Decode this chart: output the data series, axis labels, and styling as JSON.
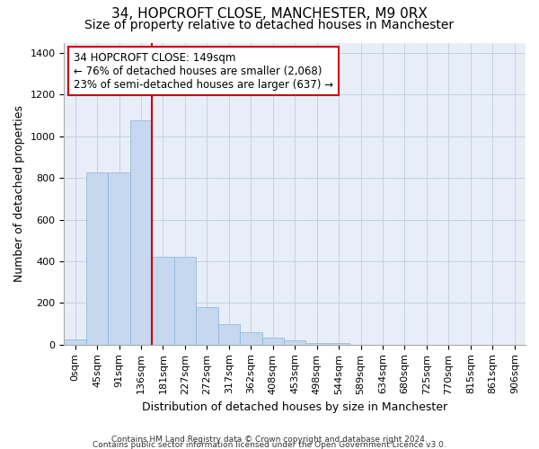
{
  "title1": "34, HOPCROFT CLOSE, MANCHESTER, M9 0RX",
  "title2": "Size of property relative to detached houses in Manchester",
  "xlabel": "Distribution of detached houses by size in Manchester",
  "ylabel": "Number of detached properties",
  "footer1": "Contains HM Land Registry data © Crown copyright and database right 2024.",
  "footer2": "Contains public sector information licensed under the Open Government Licence v3.0.",
  "annotation_line1": "34 HOPCROFT CLOSE: 149sqm",
  "annotation_line2": "← 76% of detached houses are smaller (2,068)",
  "annotation_line3": "23% of semi-detached houses are larger (637) →",
  "bar_labels": [
    "0sqm",
    "45sqm",
    "91sqm",
    "136sqm",
    "181sqm",
    "227sqm",
    "272sqm",
    "317sqm",
    "362sqm",
    "408sqm",
    "453sqm",
    "498sqm",
    "544sqm",
    "589sqm",
    "634sqm",
    "680sqm",
    "725sqm",
    "770sqm",
    "815sqm",
    "861sqm",
    "906sqm"
  ],
  "bar_values": [
    25,
    825,
    825,
    1075,
    420,
    420,
    180,
    100,
    58,
    35,
    20,
    10,
    8,
    0,
    0,
    0,
    0,
    0,
    0,
    0,
    0
  ],
  "bar_color": "#c5d8f0",
  "bar_edge_color": "#8ab4d8",
  "vline_x": 3.5,
  "vline_color": "#cc0000",
  "ylim": [
    0,
    1450
  ],
  "yticks": [
    0,
    200,
    400,
    600,
    800,
    1000,
    1200,
    1400
  ],
  "bg_color": "#e8eef8",
  "grid_color": "#c8d0e0",
  "annotation_box_color": "#cc0000",
  "title1_fontsize": 11,
  "title2_fontsize": 10,
  "annotation_fontsize": 8.5,
  "axis_label_fontsize": 9,
  "tick_fontsize": 8,
  "footer_fontsize": 6.5
}
